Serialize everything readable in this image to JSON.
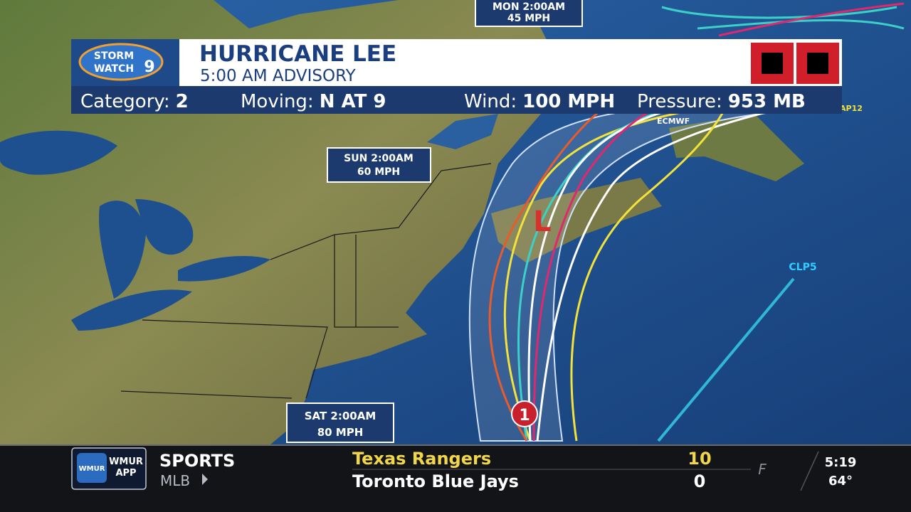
{
  "header": {
    "logo": {
      "top": "STORM",
      "bottom": "WATCH",
      "number": "9"
    },
    "title": "HURRICANE LEE",
    "subtitle": "5:00 AM ADVISORY"
  },
  "stats": [
    {
      "label": "Category:",
      "value": "2"
    },
    {
      "label": "Moving:",
      "value": "N AT 9"
    },
    {
      "label": "Wind:",
      "value": "100 MPH"
    },
    {
      "label": "Pressure:",
      "value": "953 MB"
    }
  ],
  "forecast_points": [
    {
      "time": "MON 2:00AM",
      "wind": "45 MPH"
    },
    {
      "time": "SUN 2:00AM",
      "wind": "60 MPH"
    },
    {
      "time": "SAT 2:00AM",
      "wind": "80 MPH"
    }
  ],
  "storm_markers": {
    "low": "L",
    "category": "1"
  },
  "model_labels": [
    "CLP5",
    "ECMWF",
    "AP12"
  ],
  "ticker": {
    "logo": {
      "top": "WMUR",
      "bottom": "APP"
    },
    "section": "SPORTS",
    "league": "MLB",
    "teams": [
      {
        "name": "Texas Rangers",
        "score": "10"
      },
      {
        "name": "Toronto Blue Jays",
        "score": "0"
      }
    ],
    "status": "F",
    "time": "5:19",
    "temperature": "64°"
  }
}
